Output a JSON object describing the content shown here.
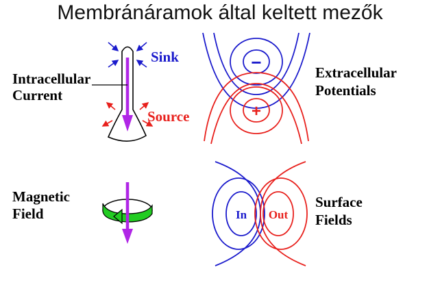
{
  "title": "Membránáramok által keltett mezők",
  "labels": {
    "intracellular_line1": "Intracellular",
    "intracellular_line2": "Current",
    "sink": "Sink",
    "source": "Source",
    "extracellular_line1": "Extracellular",
    "extracellular_line2": "Potentials",
    "magnetic_line1": "Magnetic",
    "magnetic_line2": "Field",
    "surface_line1": "Surface",
    "surface_line2": "Fields",
    "minus": "−",
    "plus": "+",
    "in": "In",
    "out": "Out"
  },
  "colors": {
    "sink": "#1a1acc",
    "source": "#e8201c",
    "current": "#b026e6",
    "magnetic_ring": "#22cc22",
    "text": "#000000"
  }
}
